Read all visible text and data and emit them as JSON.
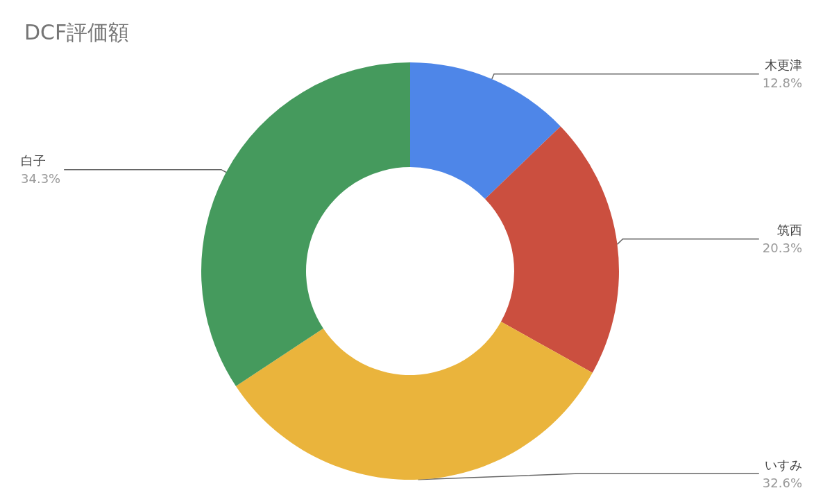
{
  "chart_data": {
    "type": "donut",
    "title": "DCF評価額",
    "categories": [
      "木更津",
      "筑西",
      "いすみ",
      "白子"
    ],
    "values": [
      12.8,
      20.3,
      32.6,
      34.3
    ],
    "colors": [
      "#4e86e8",
      "#cb4f3f",
      "#eab43c",
      "#459a5d"
    ],
    "value_labels": [
      "12.8%",
      "20.3%",
      "32.6%",
      "34.3%"
    ],
    "legend": false
  }
}
